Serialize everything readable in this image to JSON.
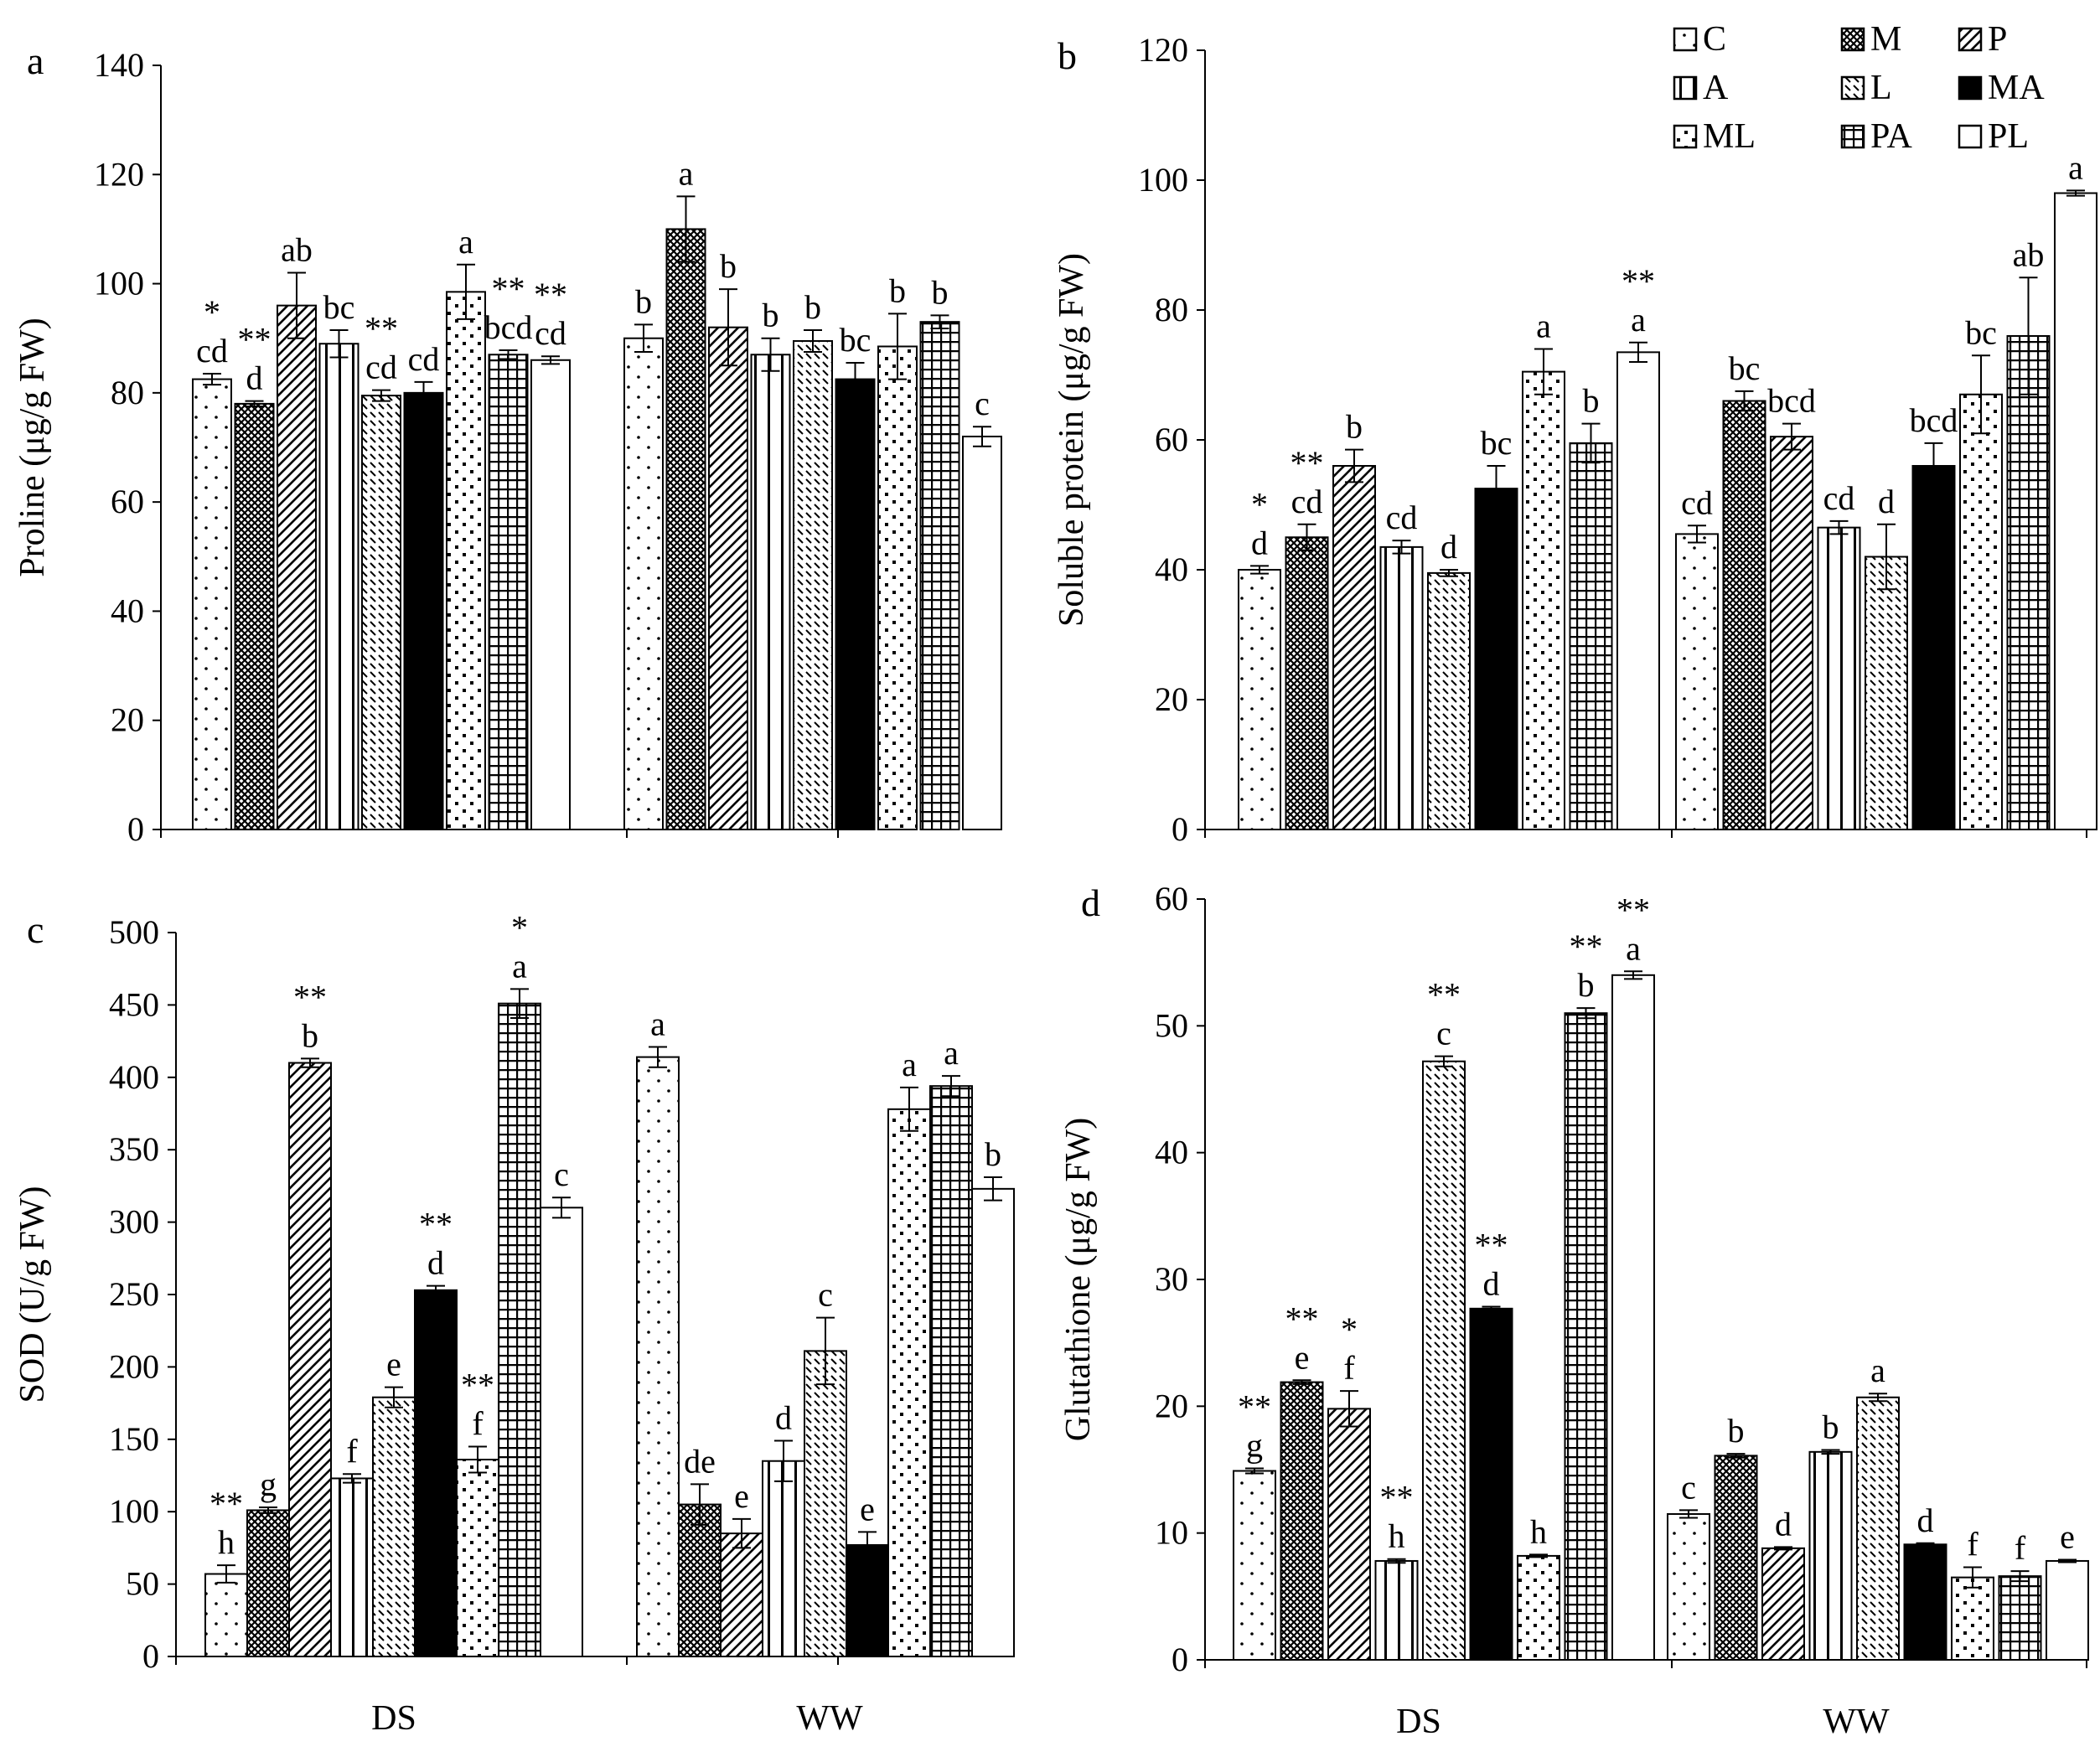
{
  "legend": [
    {
      "key": "C",
      "pattern": "dots"
    },
    {
      "key": "M",
      "pattern": "cross"
    },
    {
      "key": "P",
      "pattern": "diag"
    },
    {
      "key": "A",
      "pattern": "vert"
    },
    {
      "key": "L",
      "pattern": "dash"
    },
    {
      "key": "MA",
      "pattern": "solid"
    },
    {
      "key": "ML",
      "pattern": "bigdots"
    },
    {
      "key": "PA",
      "pattern": "grid"
    },
    {
      "key": "PL",
      "pattern": "empty"
    }
  ],
  "chart_data": [
    {
      "panel": "a",
      "type": "bar",
      "ylabel": "Proline (μg/g FW)",
      "ylim": [
        0,
        140
      ],
      "yticks": [
        0,
        20,
        40,
        60,
        80,
        100,
        120,
        140
      ],
      "groups": [
        "DS",
        "WW"
      ],
      "show_group_labels": false,
      "series": [
        {
          "name": "C",
          "values": [
            82.5,
            90
          ],
          "errors": [
            1,
            2.5
          ],
          "letters": [
            "cd",
            "b"
          ],
          "stars": [
            "*",
            ""
          ]
        },
        {
          "name": "M",
          "values": [
            78,
            110
          ],
          "errors": [
            0.5,
            6
          ],
          "letters": [
            "d",
            "a"
          ],
          "stars": [
            "**",
            ""
          ]
        },
        {
          "name": "P",
          "values": [
            96,
            92
          ],
          "errors": [
            6,
            7
          ],
          "letters": [
            "ab",
            "b"
          ],
          "stars": [
            "",
            ""
          ]
        },
        {
          "name": "A",
          "values": [
            89,
            87
          ],
          "errors": [
            2.5,
            3
          ],
          "letters": [
            "bc",
            "b"
          ],
          "stars": [
            "",
            ""
          ]
        },
        {
          "name": "L",
          "values": [
            79.5,
            89.5
          ],
          "errors": [
            1,
            2
          ],
          "letters": [
            "cd",
            "b"
          ],
          "stars": [
            "**",
            ""
          ]
        },
        {
          "name": "MA",
          "values": [
            80,
            82.5
          ],
          "errors": [
            2,
            3
          ],
          "letters": [
            "cd",
            "bc"
          ],
          "stars": [
            "",
            ""
          ]
        },
        {
          "name": "ML",
          "values": [
            98.5,
            88.5
          ],
          "errors": [
            5,
            6
          ],
          "letters": [
            "a",
            "b"
          ],
          "stars": [
            "",
            ""
          ]
        },
        {
          "name": "PA",
          "values": [
            87,
            93
          ],
          "errors": [
            0.8,
            1.2
          ],
          "letters": [
            "bcd",
            "b"
          ],
          "stars": [
            "**",
            ""
          ]
        },
        {
          "name": "PL",
          "values": [
            86,
            72
          ],
          "errors": [
            0.7,
            1.8
          ],
          "letters": [
            "cd",
            "c"
          ],
          "stars": [
            "**",
            ""
          ]
        }
      ]
    },
    {
      "panel": "b",
      "type": "bar",
      "ylabel": "Soluble protein (μg/g FW)",
      "ylim": [
        0,
        120
      ],
      "yticks": [
        0,
        20,
        40,
        60,
        80,
        100,
        120
      ],
      "groups": [
        "DS",
        "WW"
      ],
      "show_group_labels": false,
      "series": [
        {
          "name": "C",
          "values": [
            40,
            45.5
          ],
          "errors": [
            0.6,
            1.3
          ],
          "letters": [
            "d",
            "cd"
          ],
          "stars": [
            "*",
            ""
          ]
        },
        {
          "name": "M",
          "values": [
            45,
            66
          ],
          "errors": [
            2,
            1.5
          ],
          "letters": [
            "cd",
            "bc"
          ],
          "stars": [
            "**",
            ""
          ]
        },
        {
          "name": "P",
          "values": [
            56,
            60.5
          ],
          "errors": [
            2.5,
            2
          ],
          "letters": [
            "b",
            "bcd"
          ],
          "stars": [
            "",
            ""
          ]
        },
        {
          "name": "A",
          "values": [
            43.5,
            46.5
          ],
          "errors": [
            1,
            1
          ],
          "letters": [
            "cd",
            "cd"
          ],
          "stars": [
            "",
            ""
          ]
        },
        {
          "name": "L",
          "values": [
            39.5,
            42
          ],
          "errors": [
            0.5,
            5
          ],
          "letters": [
            "d",
            "d"
          ],
          "stars": [
            "",
            ""
          ]
        },
        {
          "name": "MA",
          "values": [
            52.5,
            56
          ],
          "errors": [
            3.5,
            3.5
          ],
          "letters": [
            "bc",
            "bcd"
          ],
          "stars": [
            "",
            ""
          ]
        },
        {
          "name": "ML",
          "values": [
            70.5,
            67
          ],
          "errors": [
            3.5,
            6
          ],
          "letters": [
            "a",
            "bc"
          ],
          "stars": [
            "",
            ""
          ]
        },
        {
          "name": "PA",
          "values": [
            59.5,
            76
          ],
          "errors": [
            3,
            9
          ],
          "letters": [
            "b",
            "ab"
          ],
          "stars": [
            "",
            ""
          ]
        },
        {
          "name": "PL",
          "values": [
            73.5,
            98
          ],
          "errors": [
            1.5,
            0.4
          ],
          "letters": [
            "a",
            "a"
          ],
          "stars": [
            "**",
            ""
          ]
        }
      ]
    },
    {
      "panel": "c",
      "type": "bar",
      "ylabel": "SOD (U/g FW)",
      "ylim": [
        0,
        500
      ],
      "yticks": [
        0,
        50,
        100,
        150,
        200,
        250,
        300,
        350,
        400,
        450,
        500
      ],
      "groups": [
        "DS",
        "WW"
      ],
      "show_group_labels": true,
      "series": [
        {
          "name": "C",
          "values": [
            57,
            414
          ],
          "errors": [
            6,
            7
          ],
          "letters": [
            "h",
            "a"
          ],
          "stars": [
            "**",
            ""
          ]
        },
        {
          "name": "M",
          "values": [
            101,
            105
          ],
          "errors": [
            2,
            14
          ],
          "letters": [
            "g",
            "de"
          ],
          "stars": [
            "",
            ""
          ]
        },
        {
          "name": "P",
          "values": [
            410,
            85
          ],
          "errors": [
            3,
            10
          ],
          "letters": [
            "b",
            "e"
          ],
          "stars": [
            "**",
            ""
          ]
        },
        {
          "name": "A",
          "values": [
            123,
            135
          ],
          "errors": [
            3,
            14
          ],
          "letters": [
            "f",
            "d"
          ],
          "stars": [
            "",
            ""
          ]
        },
        {
          "name": "L",
          "values": [
            179,
            211
          ],
          "errors": [
            7,
            23
          ],
          "letters": [
            "e",
            "c"
          ],
          "stars": [
            "",
            ""
          ]
        },
        {
          "name": "MA",
          "values": [
            253,
            77
          ],
          "errors": [
            3,
            9
          ],
          "letters": [
            "d",
            "e"
          ],
          "stars": [
            "**",
            ""
          ]
        },
        {
          "name": "ML",
          "values": [
            136,
            378
          ],
          "errors": [
            9,
            15
          ],
          "letters": [
            "f",
            "a"
          ],
          "stars": [
            "**",
            ""
          ]
        },
        {
          "name": "PA",
          "values": [
            451,
            394
          ],
          "errors": [
            10,
            7
          ],
          "letters": [
            "a",
            "a"
          ],
          "stars": [
            "*",
            ""
          ]
        },
        {
          "name": "PL",
          "values": [
            310,
            323
          ],
          "errors": [
            7,
            8
          ],
          "letters": [
            "c",
            "b"
          ],
          "stars": [
            "",
            ""
          ]
        }
      ]
    },
    {
      "panel": "d",
      "type": "bar",
      "ylabel": "Glutathione (μg/g FW)",
      "ylim": [
        0,
        60
      ],
      "yticks": [
        0,
        10,
        20,
        30,
        40,
        50,
        60
      ],
      "groups": [
        "DS",
        "WW"
      ],
      "show_group_labels": true,
      "series": [
        {
          "name": "C",
          "values": [
            14.9,
            11.5
          ],
          "errors": [
            0.2,
            0.3
          ],
          "letters": [
            "g",
            "c"
          ],
          "stars": [
            "**",
            ""
          ]
        },
        {
          "name": "M",
          "values": [
            21.9,
            16.1
          ],
          "errors": [
            0.15,
            0.15
          ],
          "letters": [
            "e",
            "b"
          ],
          "stars": [
            "**",
            ""
          ]
        },
        {
          "name": "P",
          "values": [
            19.8,
            8.8
          ],
          "errors": [
            1.4,
            0.1
          ],
          "letters": [
            "f",
            "d"
          ],
          "stars": [
            "*",
            ""
          ]
        },
        {
          "name": "A",
          "values": [
            7.8,
            16.4
          ],
          "errors": [
            0.15,
            0.15
          ],
          "letters": [
            "h",
            "b"
          ],
          "stars": [
            "**",
            ""
          ]
        },
        {
          "name": "L",
          "values": [
            47.2,
            20.7
          ],
          "errors": [
            0.4,
            0.3
          ],
          "letters": [
            "c",
            "a"
          ],
          "stars": [
            "**",
            ""
          ]
        },
        {
          "name": "MA",
          "values": [
            27.7,
            9.1
          ],
          "errors": [
            0.15,
            0.1
          ],
          "letters": [
            "d",
            "d"
          ],
          "stars": [
            "**",
            ""
          ]
        },
        {
          "name": "ML",
          "values": [
            8.2,
            6.5
          ],
          "errors": [
            0.1,
            0.8
          ],
          "letters": [
            "h",
            "f"
          ],
          "stars": [
            "",
            ""
          ]
        },
        {
          "name": "PA",
          "values": [
            51,
            6.6
          ],
          "errors": [
            0.4,
            0.4
          ],
          "letters": [
            "b",
            "f"
          ],
          "stars": [
            "**",
            ""
          ]
        },
        {
          "name": "PL",
          "values": [
            54,
            7.8
          ],
          "errors": [
            0.3,
            0.1
          ],
          "letters": [
            "a",
            "e"
          ],
          "stars": [
            "**",
            ""
          ]
        }
      ]
    }
  ]
}
